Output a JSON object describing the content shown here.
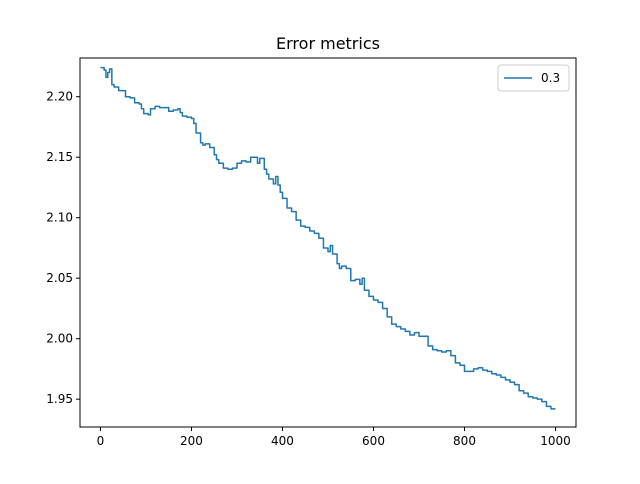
{
  "chart_data": {
    "type": "line",
    "title": "Error metrics",
    "xlabel": "",
    "ylabel": "",
    "xlim": [
      -45,
      1045
    ],
    "ylim": [
      1.927,
      2.232
    ],
    "xticks": [
      0,
      200,
      400,
      600,
      800,
      1000
    ],
    "yticks": [
      1.95,
      2.0,
      2.05,
      2.1,
      2.15,
      2.2
    ],
    "xtick_labels": [
      "0",
      "200",
      "400",
      "600",
      "800",
      "1000"
    ],
    "ytick_labels": [
      "1.95",
      "2.00",
      "2.05",
      "2.10",
      "2.15",
      "2.20"
    ],
    "grid": false,
    "legend": {
      "position": "top-right"
    },
    "series": [
      {
        "name": "0.3",
        "color": "#1f77b4",
        "x": [
          0,
          8,
          12,
          16,
          20,
          25,
          30,
          40,
          55,
          65,
          75,
          85,
          90,
          95,
          105,
          110,
          120,
          130,
          140,
          150,
          160,
          170,
          175,
          180,
          190,
          200,
          205,
          210,
          220,
          225,
          230,
          240,
          250,
          255,
          260,
          270,
          280,
          290,
          300,
          310,
          320,
          330,
          340,
          345,
          350,
          360,
          365,
          370,
          380,
          385,
          390,
          395,
          400,
          410,
          420,
          430,
          440,
          450,
          460,
          470,
          480,
          490,
          500,
          505,
          510,
          520,
          525,
          530,
          540,
          550,
          560,
          570,
          575,
          580,
          590,
          600,
          610,
          620,
          630,
          640,
          650,
          660,
          670,
          680,
          690,
          700,
          710,
          720,
          730,
          740,
          750,
          760,
          770,
          780,
          790,
          800,
          810,
          820,
          830,
          840,
          850,
          860,
          870,
          880,
          890,
          900,
          910,
          920,
          930,
          940,
          950,
          960,
          970,
          980,
          990,
          1000
        ],
        "values": [
          2.224,
          2.222,
          2.216,
          2.22,
          2.223,
          2.21,
          2.208,
          2.205,
          2.2,
          2.199,
          2.195,
          2.194,
          2.19,
          2.186,
          2.185,
          2.19,
          2.192,
          2.191,
          2.191,
          2.188,
          2.189,
          2.19,
          2.187,
          2.184,
          2.183,
          2.182,
          2.178,
          2.17,
          2.162,
          2.16,
          2.161,
          2.158,
          2.152,
          2.148,
          2.145,
          2.141,
          2.14,
          2.141,
          2.145,
          2.147,
          2.146,
          2.15,
          2.15,
          2.145,
          2.149,
          2.14,
          2.136,
          2.132,
          2.128,
          2.134,
          2.127,
          2.121,
          2.116,
          2.108,
          2.105,
          2.098,
          2.093,
          2.092,
          2.089,
          2.087,
          2.083,
          2.075,
          2.072,
          2.077,
          2.07,
          2.062,
          2.058,
          2.06,
          2.058,
          2.048,
          2.049,
          2.045,
          2.05,
          2.04,
          2.035,
          2.032,
          2.03,
          2.025,
          2.018,
          2.012,
          2.01,
          2.008,
          2.006,
          2.003,
          2.005,
          2.002,
          2.002,
          1.994,
          1.991,
          1.99,
          1.989,
          1.99,
          1.986,
          1.98,
          1.978,
          1.973,
          1.973,
          1.975,
          1.976,
          1.974,
          1.973,
          1.971,
          1.97,
          1.968,
          1.966,
          1.964,
          1.962,
          1.957,
          1.955,
          1.952,
          1.951,
          1.95,
          1.948,
          1.944,
          1.942,
          1.942
        ]
      }
    ]
  }
}
